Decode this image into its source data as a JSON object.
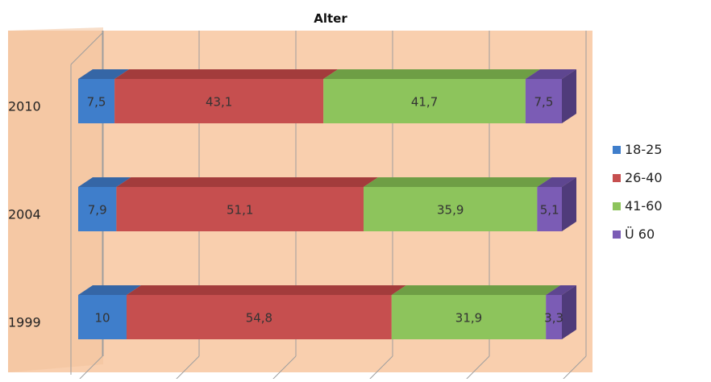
{
  "chart_data": {
    "type": "bar",
    "orientation": "horizontal",
    "stacked": true,
    "three_d": true,
    "title": "Alter",
    "categories": [
      "2010",
      "2004",
      "1999"
    ],
    "series": [
      {
        "name": "18-25",
        "values": [
          7.5,
          7.9,
          10
        ],
        "labels": [
          "7,5",
          "7,9",
          "10"
        ]
      },
      {
        "name": "26-40",
        "values": [
          43.1,
          51.1,
          54.8
        ],
        "labels": [
          "43,1",
          "51,1",
          "54,8"
        ]
      },
      {
        "name": "41-60",
        "values": [
          41.7,
          35.9,
          31.9
        ],
        "labels": [
          "41,7",
          "35,9",
          "31,9"
        ]
      },
      {
        "name": "Ü 60",
        "values": [
          7.5,
          5.1,
          3.3
        ],
        "labels": [
          "7,5",
          "5,1",
          "3,3"
        ]
      }
    ],
    "xlim": [
      0,
      100
    ],
    "grid": true,
    "legend_position": "right"
  },
  "colors": {
    "plot_background": "#f9cfae",
    "gridline": "#9e9e9e",
    "series": [
      "#3f7ecb",
      "#c64f4f",
      "#8dc45c",
      "#7b5cb5"
    ],
    "series_top": [
      "#3566a6",
      "#a33c3c",
      "#6e9e45",
      "#5e4690"
    ],
    "series_side": [
      "#2f5c92",
      "#8f3535",
      "#5e8a3c",
      "#4f3b7a"
    ],
    "label_text": "#333333",
    "title_text": "#111111"
  }
}
